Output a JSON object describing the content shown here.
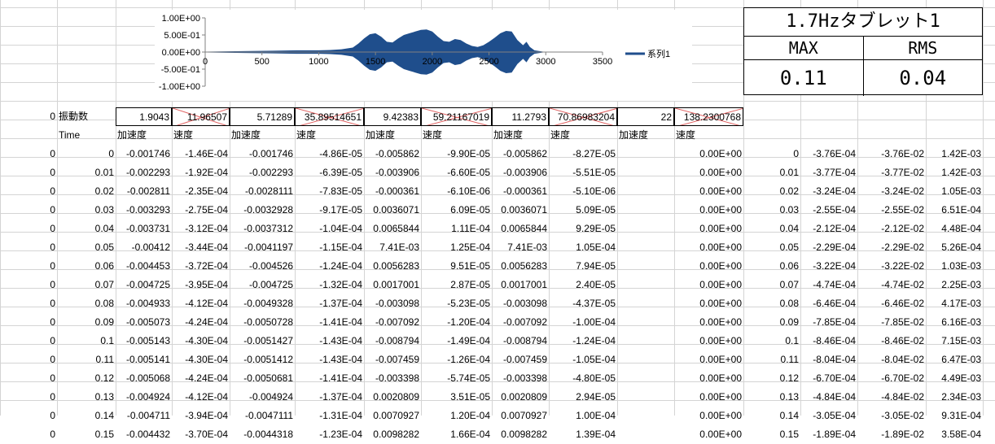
{
  "chart_data": {
    "type": "area",
    "title": "",
    "xlabel": "",
    "ylabel": "",
    "xlim": [
      0,
      3500
    ],
    "ylim": [
      -1.0,
      1.0
    ],
    "x_ticks": [
      "0",
      "500",
      "1000",
      "1500",
      "2000",
      "2500",
      "3000",
      "3500"
    ],
    "y_ticks": [
      "1.00E+00",
      "5.00E-01",
      "0.00E+00",
      "-5.00E-01",
      "-1.00E+00"
    ],
    "legend": "right",
    "series": [
      {
        "name": "系列1",
        "color": "#1f4e8c",
        "envelope": [
          [
            0,
            0.01
          ],
          [
            200,
            0.02
          ],
          [
            400,
            0.03
          ],
          [
            600,
            0.04
          ],
          [
            800,
            0.05
          ],
          [
            1000,
            0.05
          ],
          [
            1100,
            0.06
          ],
          [
            1200,
            0.08
          ],
          [
            1300,
            0.13
          ],
          [
            1350,
            0.25
          ],
          [
            1400,
            0.4
          ],
          [
            1450,
            0.52
          ],
          [
            1500,
            0.55
          ],
          [
            1550,
            0.45
          ],
          [
            1600,
            0.3
          ],
          [
            1650,
            0.28
          ],
          [
            1700,
            0.4
          ],
          [
            1750,
            0.5
          ],
          [
            1800,
            0.55
          ],
          [
            1850,
            0.6
          ],
          [
            1900,
            0.65
          ],
          [
            1950,
            0.66
          ],
          [
            2000,
            0.6
          ],
          [
            2050,
            0.45
          ],
          [
            2100,
            0.32
          ],
          [
            2150,
            0.3
          ],
          [
            2200,
            0.38
          ],
          [
            2250,
            0.35
          ],
          [
            2300,
            0.25
          ],
          [
            2350,
            0.18
          ],
          [
            2400,
            0.15
          ],
          [
            2450,
            0.2
          ],
          [
            2500,
            0.3
          ],
          [
            2550,
            0.42
          ],
          [
            2600,
            0.55
          ],
          [
            2650,
            0.62
          ],
          [
            2700,
            0.6
          ],
          [
            2750,
            0.35
          ],
          [
            2800,
            0.2
          ],
          [
            2830,
            0.3
          ],
          [
            2860,
            0.15
          ],
          [
            2900,
            0.05
          ],
          [
            3000,
            0.0
          ]
        ]
      }
    ]
  },
  "summary": {
    "title": "1.7Hzタブレット1",
    "max_label": "MAX",
    "rms_label": "RMS",
    "max_value": "0.11",
    "rms_value": "0.04"
  },
  "sheet": {
    "row0": {
      "a": "0",
      "label": "振動数",
      "values": [
        "1.9043",
        "11.96507",
        "5.71289",
        "35.89514651",
        "9.42383",
        "59.21167019",
        "11.2793",
        "70.86983204",
        "22",
        "138.2300768"
      ]
    },
    "headers": [
      "Time",
      "加速度",
      "速度",
      "加速度",
      "速度",
      "加速度",
      "速度",
      "加速度",
      "速度",
      "加速度",
      "速度"
    ],
    "rows": [
      [
        "0",
        "0",
        "-0.001746",
        "-1.46E-04",
        "-0.001746",
        "-4.86E-05",
        "-0.005862",
        "-9.90E-05",
        "-0.005862",
        "-8.27E-05",
        "",
        "0.00E+00",
        "0",
        "-3.76E-04",
        "-3.76E-02",
        "1.42E-03"
      ],
      [
        "0",
        "0.01",
        "-0.002293",
        "-1.92E-04",
        "-0.002293",
        "-6.39E-05",
        "-0.003906",
        "-6.60E-05",
        "-0.003906",
        "-5.51E-05",
        "",
        "0.00E+00",
        "0.01",
        "-3.77E-04",
        "-3.77E-02",
        "1.42E-03"
      ],
      [
        "0",
        "0.02",
        "-0.002811",
        "-2.35E-04",
        "-0.0028111",
        "-7.83E-05",
        "-0.000361",
        "-6.10E-06",
        "-0.000361",
        "-5.10E-06",
        "",
        "0.00E+00",
        "0.02",
        "-3.24E-04",
        "-3.24E-02",
        "1.05E-03"
      ],
      [
        "0",
        "0.03",
        "-0.003293",
        "-2.75E-04",
        "-0.0032928",
        "-9.17E-05",
        "0.0036071",
        "6.09E-05",
        "0.0036071",
        "5.09E-05",
        "",
        "0.00E+00",
        "0.03",
        "-2.55E-04",
        "-2.55E-02",
        "6.51E-04"
      ],
      [
        "0",
        "0.04",
        "-0.003731",
        "-3.12E-04",
        "-0.0037312",
        "-1.04E-04",
        "0.0065844",
        "1.11E-04",
        "0.0065844",
        "9.29E-05",
        "",
        "0.00E+00",
        "0.04",
        "-2.12E-04",
        "-2.12E-02",
        "4.48E-04"
      ],
      [
        "0",
        "0.05",
        "-0.00412",
        "-3.44E-04",
        "-0.0041197",
        "-1.15E-04",
        "7.41E-03",
        "1.25E-04",
        "7.41E-03",
        "1.05E-04",
        "",
        "0.00E+00",
        "0.05",
        "-2.29E-04",
        "-2.29E-02",
        "5.26E-04"
      ],
      [
        "0",
        "0.06",
        "-0.004453",
        "-3.72E-04",
        "-0.004526",
        "-1.24E-04",
        "0.0056283",
        "9.51E-05",
        "0.0056283",
        "7.94E-05",
        "",
        "0.00E+00",
        "0.06",
        "-3.22E-04",
        "-3.22E-02",
        "1.03E-03"
      ],
      [
        "0",
        "0.07",
        "-0.004725",
        "-3.95E-04",
        "-0.004725",
        "-1.32E-04",
        "0.0017001",
        "2.87E-05",
        "0.0017001",
        "2.40E-05",
        "",
        "0.00E+00",
        "0.07",
        "-4.74E-04",
        "-4.74E-02",
        "2.25E-03"
      ],
      [
        "0",
        "0.08",
        "-0.004933",
        "-4.12E-04",
        "-0.0049328",
        "-1.37E-04",
        "-0.003098",
        "-5.23E-05",
        "-0.003098",
        "-4.37E-05",
        "",
        "0.00E+00",
        "0.08",
        "-6.46E-04",
        "-6.46E-02",
        "4.17E-03"
      ],
      [
        "0",
        "0.09",
        "-0.005073",
        "-4.24E-04",
        "-0.0050728",
        "-1.41E-04",
        "-0.007092",
        "-1.20E-04",
        "-0.007092",
        "-1.00E-04",
        "",
        "0.00E+00",
        "0.09",
        "-7.85E-04",
        "-7.85E-02",
        "6.16E-03"
      ],
      [
        "0",
        "0.1",
        "-0.005143",
        "-4.30E-04",
        "-0.0051427",
        "-1.43E-04",
        "-0.008794",
        "-1.49E-04",
        "-0.008794",
        "-1.24E-04",
        "",
        "0.00E+00",
        "0.1",
        "-8.46E-04",
        "-8.46E-02",
        "7.15E-03"
      ],
      [
        "0",
        "0.11",
        "-0.005141",
        "-4.30E-04",
        "-0.0051412",
        "-1.43E-04",
        "-0.007459",
        "-1.26E-04",
        "-0.007459",
        "-1.05E-04",
        "",
        "0.00E+00",
        "0.11",
        "-8.04E-04",
        "-8.04E-02",
        "6.47E-03"
      ],
      [
        "0",
        "0.12",
        "-0.005068",
        "-4.24E-04",
        "-0.0050681",
        "-1.41E-04",
        "-0.003398",
        "-5.74E-05",
        "-0.003398",
        "-4.80E-05",
        "",
        "0.00E+00",
        "0.12",
        "-6.70E-04",
        "-6.70E-02",
        "4.49E-03"
      ],
      [
        "0",
        "0.13",
        "-0.004924",
        "-4.12E-04",
        "-0.004924",
        "-1.37E-04",
        "0.0020809",
        "3.51E-05",
        "0.0020809",
        "2.94E-05",
        "",
        "0.00E+00",
        "0.13",
        "-4.84E-04",
        "-4.84E-02",
        "2.34E-03"
      ],
      [
        "0",
        "0.14",
        "-0.004711",
        "-3.94E-04",
        "-0.0047111",
        "-1.31E-04",
        "0.0070927",
        "1.20E-04",
        "0.0070927",
        "1.00E-04",
        "",
        "0.00E+00",
        "0.14",
        "-3.05E-04",
        "-3.05E-02",
        "9.31E-04"
      ],
      [
        "0",
        "0.15",
        "-0.004432",
        "-3.70E-04",
        "-0.0044318",
        "-1.23E-04",
        "0.0098282",
        "1.66E-04",
        "0.0098282",
        "1.39E-04",
        "",
        "0.00E+00",
        "0.15",
        "-1.89E-04",
        "-1.89E-02",
        "3.58E-04"
      ]
    ]
  }
}
